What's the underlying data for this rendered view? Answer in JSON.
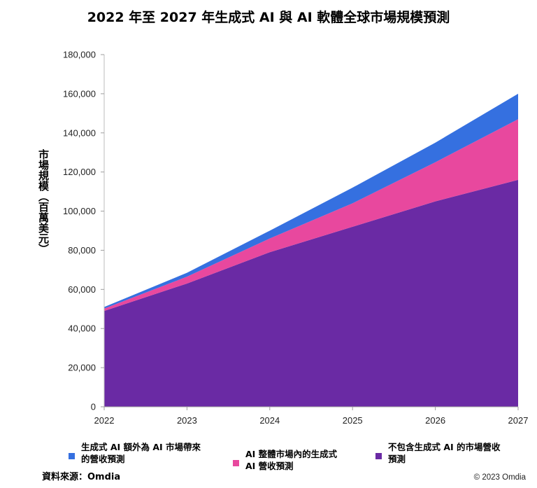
{
  "chart_data": {
    "type": "area",
    "stacked": true,
    "title": "2022 年至 2027 年生成式 AI 與 AI 軟體全球市場規模預測",
    "ylabel": "市場規模（百萬美元）",
    "xlabel": "",
    "x": [
      "2022",
      "2023",
      "2024",
      "2025",
      "2026",
      "2027"
    ],
    "ylim": [
      0,
      180000
    ],
    "yticks": [
      "0",
      "20,000",
      "40,000",
      "60,000",
      "80,000",
      "100,000",
      "120,000",
      "140,000",
      "160,000",
      "180,000"
    ],
    "grid": false,
    "legend_position": "bottom",
    "series": [
      {
        "name": "不包含生成式 AI 的市場營收預測",
        "color": "#6a2aa4",
        "values": [
          49000,
          63000,
          79000,
          92000,
          105000,
          116000
        ]
      },
      {
        "name": "AI 整體市場內的生成式 AI 營收預測",
        "color": "#e8489e",
        "values": [
          1200,
          3500,
          7000,
          12000,
          20000,
          31000
        ]
      },
      {
        "name": "生成式 AI 額外為 AI 市場帶來的營收預測",
        "color": "#3570e0",
        "values": [
          800,
          2000,
          4000,
          8000,
          10000,
          13000
        ]
      }
    ]
  },
  "legend": [
    {
      "line1": "生成式 AI 額外為 AI 市場帶來",
      "line2": "的營收預測",
      "color": "#3570e0"
    },
    {
      "line1": "AI 整體市場內的生成式",
      "line2": "AI 營收預測",
      "color": "#e8489e"
    },
    {
      "line1": "不包含生成式 AI 的市場營收",
      "line2": "預測",
      "color": "#6a2aa4"
    }
  ],
  "source": "資料來源：Omdia",
  "copyright": "© 2023 Omdia"
}
